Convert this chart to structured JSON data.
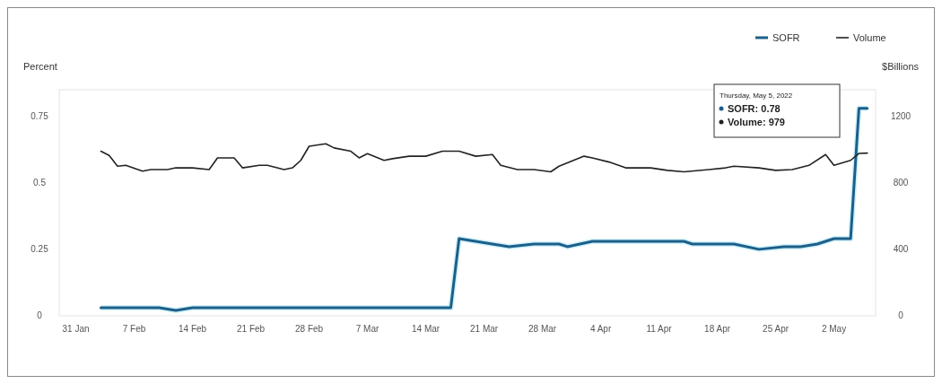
{
  "chart_data": {
    "type": "line",
    "ylabel": "Percent",
    "y2label": "$Billions",
    "legend": "top right",
    "annotations": [
      "Thursday, May 5, 2022",
      "SOFR: 0.78",
      "Volume: 979"
    ],
    "xlim": [
      "2022-01-29",
      "2022-05-07"
    ],
    "xticks": [
      {
        "value": "2022-01-31",
        "label": "31 Jan"
      },
      {
        "value": "2022-02-07",
        "label": "7 Feb"
      },
      {
        "value": "2022-02-14",
        "label": "14 Feb"
      },
      {
        "value": "2022-02-21",
        "label": "21 Feb"
      },
      {
        "value": "2022-02-28",
        "label": "28 Feb"
      },
      {
        "value": "2022-03-07",
        "label": "7 Mar"
      },
      {
        "value": "2022-03-14",
        "label": "14 Mar"
      },
      {
        "value": "2022-03-21",
        "label": "21 Mar"
      },
      {
        "value": "2022-03-28",
        "label": "28 Mar"
      },
      {
        "value": "2022-04-04",
        "label": "4 Apr"
      },
      {
        "value": "2022-04-11",
        "label": "11 Apr"
      },
      {
        "value": "2022-04-18",
        "label": "18 Apr"
      },
      {
        "value": "2022-04-25",
        "label": "25 Apr"
      },
      {
        "value": "2022-05-02",
        "label": "2 May"
      }
    ],
    "ylim": [
      0,
      0.85
    ],
    "yticks": [
      0,
      0.25,
      0.5,
      0.75
    ],
    "y2lim": [
      0,
      1360
    ],
    "y2ticks": [
      0,
      400,
      800,
      1200
    ],
    "series": [
      {
        "name": "SOFR",
        "color": "#1c5f8a",
        "x": [
          "2022-02-03",
          "2022-02-10",
          "2022-02-12",
          "2022-02-14",
          "2022-03-17",
          "2022-03-18",
          "2022-03-20",
          "2022-03-24",
          "2022-03-27",
          "2022-03-30",
          "2022-03-31",
          "2022-04-03",
          "2022-04-14",
          "2022-04-15",
          "2022-04-20",
          "2022-04-23",
          "2022-04-26",
          "2022-04-28",
          "2022-04-30",
          "2022-05-02",
          "2022-05-04",
          "2022-05-05",
          "2022-05-06"
        ],
        "values": [
          0.03,
          0.03,
          0.02,
          0.03,
          0.03,
          0.29,
          0.28,
          0.26,
          0.27,
          0.27,
          0.26,
          0.28,
          0.28,
          0.27,
          0.27,
          0.25,
          0.26,
          0.26,
          0.27,
          0.29,
          0.29,
          0.78,
          0.78
        ]
      },
      {
        "name": "Volume",
        "color": "#222222",
        "axis": "y2",
        "x": [
          "2022-02-03",
          "2022-02-04",
          "2022-02-05",
          "2022-02-06",
          "2022-02-08",
          "2022-02-09",
          "2022-02-11",
          "2022-02-12",
          "2022-02-14",
          "2022-02-16",
          "2022-02-17",
          "2022-02-19",
          "2022-02-20",
          "2022-02-22",
          "2022-02-23",
          "2022-02-25",
          "2022-02-26",
          "2022-02-27",
          "2022-02-28",
          "2022-03-02",
          "2022-03-03",
          "2022-03-05",
          "2022-03-06",
          "2022-03-07",
          "2022-03-09",
          "2022-03-10",
          "2022-03-12",
          "2022-03-14",
          "2022-03-16",
          "2022-03-18",
          "2022-03-20",
          "2022-03-22",
          "2022-03-23",
          "2022-03-25",
          "2022-03-27",
          "2022-03-29",
          "2022-03-30",
          "2022-04-02",
          "2022-04-03",
          "2022-04-05",
          "2022-04-07",
          "2022-04-10",
          "2022-04-12",
          "2022-04-14",
          "2022-04-17",
          "2022-04-19",
          "2022-04-20",
          "2022-04-23",
          "2022-04-25",
          "2022-04-27",
          "2022-04-29",
          "2022-05-01",
          "2022-05-02",
          "2022-05-04",
          "2022-05-05",
          "2022-05-06"
        ],
        "values": [
          990,
          965,
          900,
          905,
          870,
          880,
          880,
          890,
          890,
          880,
          950,
          950,
          890,
          905,
          905,
          880,
          890,
          935,
          1020,
          1035,
          1010,
          990,
          950,
          975,
          935,
          945,
          960,
          960,
          990,
          990,
          960,
          970,
          905,
          880,
          880,
          866,
          900,
          960,
          950,
          925,
          890,
          890,
          875,
          866,
          880,
          890,
          900,
          890,
          875,
          880,
          905,
          970,
          905,
          935,
          977,
          979
        ]
      }
    ]
  }
}
